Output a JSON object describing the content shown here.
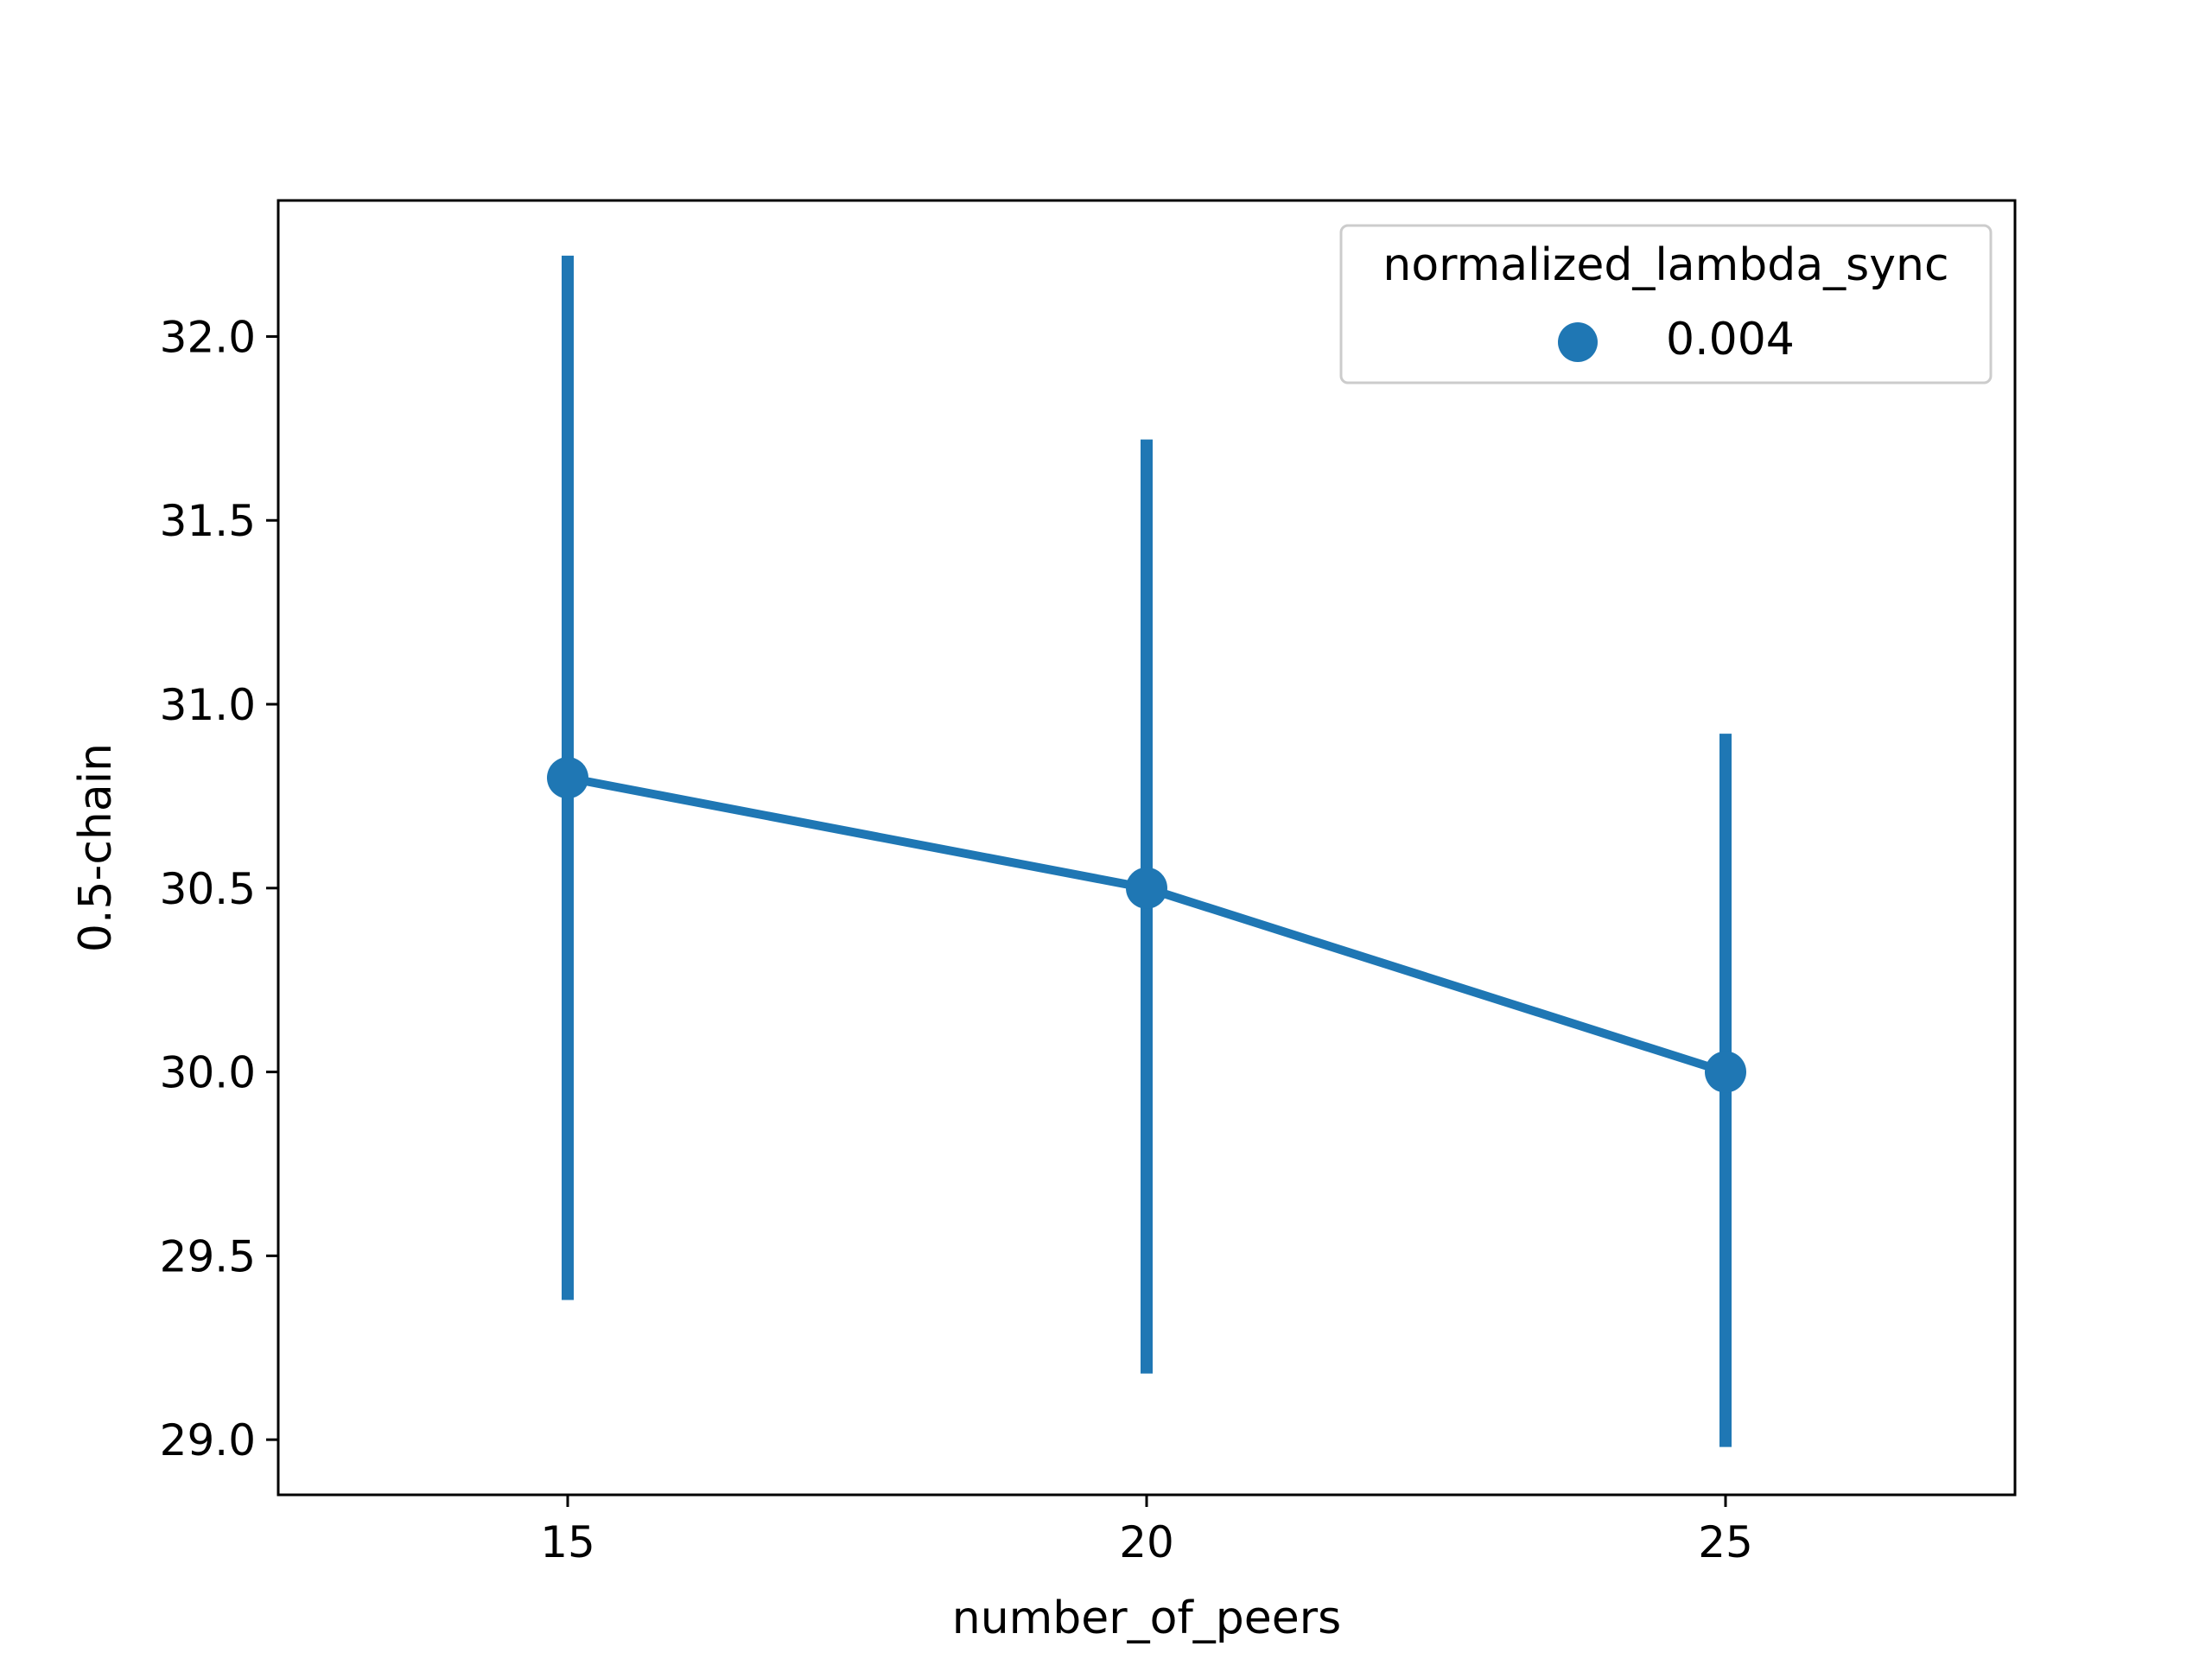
{
  "chart_data": {
    "type": "line",
    "xlabel": "number_of_peers",
    "ylabel": "0.5-chain",
    "x": [
      15,
      20,
      25
    ],
    "xlim": [
      12.5,
      27.5
    ],
    "ylim": [
      28.85,
      32.37
    ],
    "xticks": [
      15,
      20,
      25
    ],
    "yticks": [
      29.0,
      29.5,
      30.0,
      30.5,
      31.0,
      31.5,
      32.0
    ],
    "yticks_labels": [
      "29.0",
      "29.5",
      "30.0",
      "30.5",
      "31.0",
      "31.5",
      "32.0"
    ],
    "grid": false,
    "legend": {
      "title": "normalized_lambda_sync",
      "placement": "top-right"
    },
    "series": [
      {
        "name": "0.004",
        "color": "#1f77b4",
        "values": [
          30.8,
          30.5,
          30.0
        ],
        "error_low": [
          29.38,
          29.18,
          28.98
        ],
        "error_high": [
          32.22,
          31.72,
          30.92
        ]
      }
    ]
  }
}
